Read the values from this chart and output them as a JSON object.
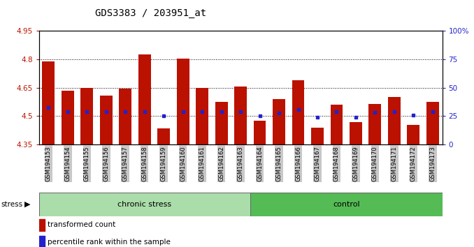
{
  "title": "GDS3383 / 203951_at",
  "samples": [
    "GSM194153",
    "GSM194154",
    "GSM194155",
    "GSM194156",
    "GSM194157",
    "GSM194158",
    "GSM194159",
    "GSM194160",
    "GSM194161",
    "GSM194162",
    "GSM194163",
    "GSM194164",
    "GSM194165",
    "GSM194166",
    "GSM194167",
    "GSM194168",
    "GSM194169",
    "GSM194170",
    "GSM194171",
    "GSM194172",
    "GSM194173"
  ],
  "bar_values": [
    4.79,
    4.635,
    4.65,
    4.61,
    4.645,
    4.825,
    4.435,
    4.805,
    4.65,
    4.575,
    4.655,
    4.475,
    4.59,
    4.69,
    4.44,
    4.56,
    4.47,
    4.565,
    4.6,
    4.455,
    4.575
  ],
  "dot_values": [
    4.545,
    4.525,
    4.525,
    4.525,
    4.525,
    4.525,
    4.5,
    4.525,
    4.525,
    4.525,
    4.525,
    4.5,
    4.515,
    4.535,
    4.495,
    4.525,
    4.495,
    4.52,
    4.525,
    4.505,
    4.525
  ],
  "ymin": 4.35,
  "ymax": 4.95,
  "yticks": [
    4.35,
    4.5,
    4.65,
    4.8,
    4.95
  ],
  "right_yticks": [
    0,
    25,
    50,
    75,
    100
  ],
  "bar_color": "#BB1100",
  "dot_color": "#2222CC",
  "chronic_stress_count": 11,
  "group_labels": [
    "chronic stress",
    "control"
  ],
  "stress_label": "stress",
  "dotted_lines": [
    4.5,
    4.65,
    4.8
  ],
  "title_fontsize": 10,
  "tick_fontsize": 7.5,
  "right_axis_color": "#2222CC",
  "left_axis_color": "#BB1100",
  "chronic_color": "#AADDAA",
  "control_color": "#55BB55",
  "xtick_bg": "#C8C8C8"
}
